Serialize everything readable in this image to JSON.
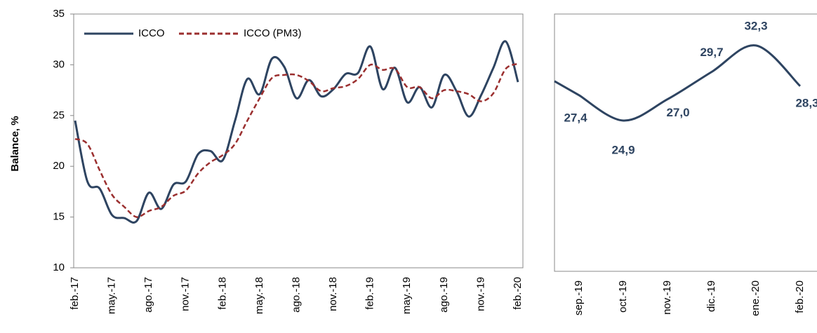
{
  "chart_data": [
    {
      "type": "line",
      "y_label": "Balance, %",
      "categories": [
        "feb.-17",
        null,
        null,
        "may.-17",
        null,
        null,
        "ago.-17",
        null,
        null,
        "nov.-17",
        null,
        null,
        "feb.-18",
        null,
        null,
        "may.-18",
        null,
        null,
        "ago.-18",
        null,
        null,
        "nov.-18",
        null,
        null,
        "feb.-19",
        null,
        null,
        "may.-19",
        null,
        null,
        "ago.-19",
        null,
        null,
        "nov.-19",
        null,
        null,
        "feb.-20"
      ],
      "series": [
        {
          "name": "ICCO",
          "color": "#2e4461",
          "dash": false,
          "values": [
            24.5,
            18.5,
            17.8,
            15.2,
            14.9,
            14.6,
            17.4,
            15.8,
            18.2,
            18.5,
            21.2,
            21.5,
            20.6,
            24.5,
            28.6,
            27.1,
            30.6,
            29.8,
            26.7,
            28.5,
            26.9,
            27.6,
            29.1,
            29.2,
            31.8,
            27.6,
            29.7,
            26.3,
            27.8,
            25.8,
            29.0,
            27.4,
            24.9,
            27.0,
            29.7,
            32.3,
            28.3
          ]
        },
        {
          "name": "ICCO (PM3)",
          "color": "#9b2f2f",
          "dash": true,
          "values": [
            22.7,
            22.2,
            19.6,
            17.2,
            16.0,
            15.0,
            15.6,
            16.0,
            17.1,
            17.6,
            19.3,
            20.4,
            21.1,
            22.2,
            24.5,
            26.7,
            28.7,
            29.0,
            29.0,
            28.4,
            27.4,
            27.7,
            27.9,
            28.6,
            30.0,
            29.5,
            29.6,
            27.8,
            27.8,
            26.7,
            27.5,
            27.4,
            27.1,
            26.4,
            27.2,
            29.6,
            30.1
          ]
        }
      ],
      "ylim": [
        10,
        35
      ],
      "yticks": [
        10,
        15,
        20,
        25,
        30,
        35
      ],
      "legend": "top-left"
    },
    {
      "type": "line",
      "categories": [
        "sep.-19",
        "oct.-19",
        "nov.-19",
        "dic.-19",
        "ene.-20",
        "feb.-20"
      ],
      "values": [
        27.4,
        24.9,
        27.0,
        29.7,
        32.3,
        28.3
      ],
      "value_labels": [
        "27,4",
        "24,9",
        "27,0",
        "29,7",
        "32,3",
        "28,3"
      ],
      "color": "#2e4461"
    }
  ]
}
